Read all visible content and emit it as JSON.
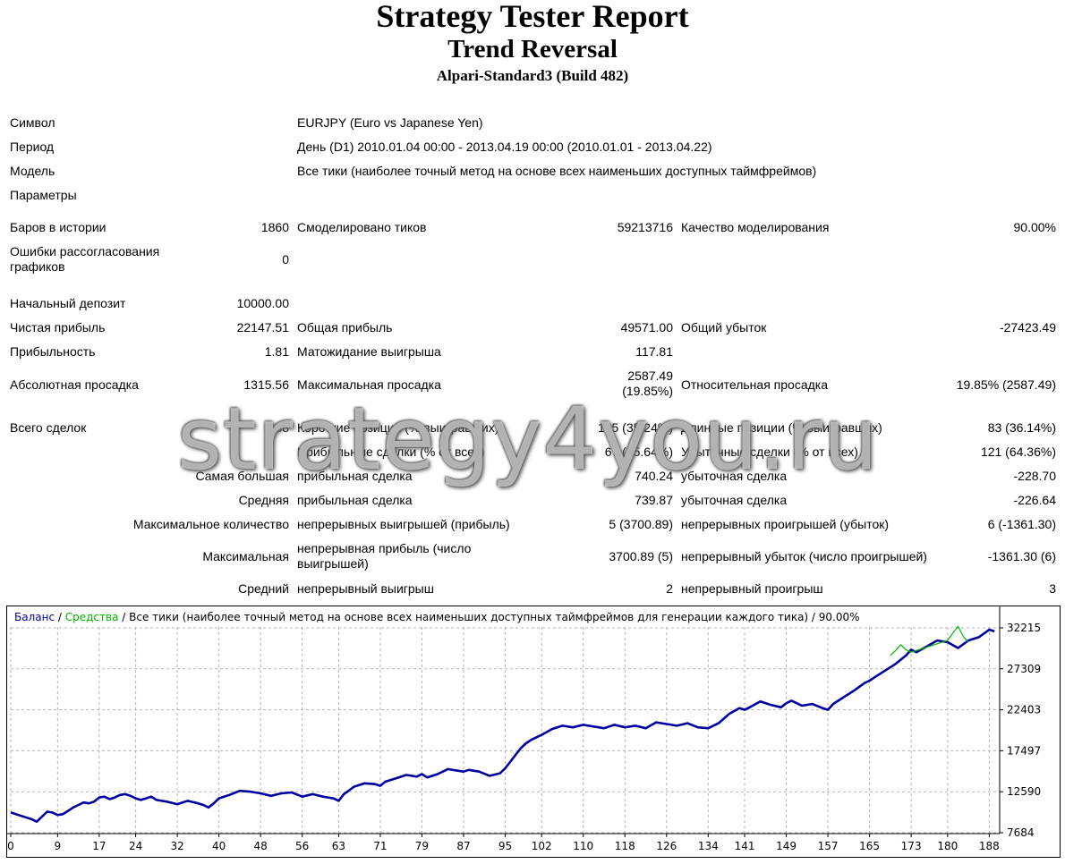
{
  "header": {
    "title": "Strategy Tester Report",
    "subtitle": "Trend Reversal",
    "server": "Alpari-Standard3 (Build 482)"
  },
  "info": {
    "symbol_label": "Символ",
    "symbol_value": "EURJPY (Euro vs Japanese Yen)",
    "period_label": "Период",
    "period_value": "День (D1) 2010.01.04 00:00 - 2013.04.19 00:00 (2010.01.01 - 2013.04.22)",
    "model_label": "Модель",
    "model_value": "Все тики (наиболее точный метод на основе всех наименьших доступных таймфреймов)",
    "params_label": "Параметры"
  },
  "stats": {
    "bars_label": "Баров в истории",
    "bars_value": "1860",
    "ticks_label": "Смоделировано тиков",
    "ticks_value": "59213716",
    "quality_label": "Качество моделирования",
    "quality_value": "90.00%",
    "errors_label": "Ошибки рассогласования графиков",
    "errors_value": "0",
    "deposit_label": "Начальный депозит",
    "deposit_value": "10000.00",
    "net_label": "Чистая прибыль",
    "net_value": "22147.51",
    "gross_profit_label": "Общая прибыль",
    "gross_profit_value": "49571.00",
    "gross_loss_label": "Общий убыток",
    "gross_loss_value": "-27423.49",
    "pf_label": "Прибыльность",
    "pf_value": "1.81",
    "payoff_label": "Матожидание выигрыша",
    "payoff_value": "117.81",
    "abs_dd_label": "Абсолютная просадка",
    "abs_dd_value": "1315.56",
    "max_dd_label": "Максимальная просадка",
    "max_dd_value_1": "2587.49",
    "max_dd_value_2": "(19.85%)",
    "rel_dd_label": "Относительная просадка",
    "rel_dd_value": "19.85% (2587.49)",
    "trades_label": "Всего сделок",
    "trades_value": "188",
    "short_label": "Короткие позиции (% выигравших)",
    "short_value": "105 (35.24%)",
    "long_label": "Длинные позиции (% выигравших)",
    "long_value": "83 (36.14%)",
    "profit_trades_label": "Прибыльные сделки (% от всех)",
    "profit_trades_value": "67 (35.64%)",
    "loss_trades_label": "Убыточные сделки (% от всех)",
    "loss_trades_value": "121 (64.36%)",
    "largest_label": "Самая большая",
    "largest_profit_label": "прибыльная сделка",
    "largest_profit_value": "740.24",
    "largest_loss_label": "убыточная сделка",
    "largest_loss_value": "-228.70",
    "average_label": "Средняя",
    "average_profit_label": "прибыльная сделка",
    "average_profit_value": "739.87",
    "average_loss_label": "убыточная сделка",
    "average_loss_value": "-226.64",
    "max_count_label": "Максимальное количество",
    "max_cons_wins_label": "непрерывных выигрышей (прибыль)",
    "max_cons_wins_value": "5 (3700.89)",
    "max_cons_losses_label": "непрерывных проигрышей (убыток)",
    "max_cons_losses_value": "6 (-1361.30)",
    "maximal_label": "Максимальная",
    "maximal_profit_label": "непрерывная прибыль (число выигрышей)",
    "maximal_profit_value": "3700.89 (5)",
    "maximal_loss_label": "непрерывный убыток (число проигрышей)",
    "maximal_loss_value": "-1361.30 (6)",
    "avg_cons_label": "Средний",
    "avg_cons_wins_label": "непрерывный выигрыш",
    "avg_cons_wins_value": "2",
    "avg_cons_losses_label": "непрерывный проигрыш",
    "avg_cons_losses_value": "3"
  },
  "watermark": "strategy4you.ru",
  "chart_data": {
    "type": "line",
    "legend": {
      "balance": "Баланс",
      "sep1": " / ",
      "equity": "Средства",
      "rest": " / Все тики (наиболее точный метод на основе всех наименьших доступных таймфреймов для генерации каждого тика) / 90.00%"
    },
    "colors": {
      "balance": "#0000a0",
      "equity": "#00b400",
      "grid": "#b4b4b4"
    },
    "x_ticks": [
      "0",
      "9",
      "17",
      "24",
      "32",
      "40",
      "48",
      "56",
      "63",
      "71",
      "79",
      "87",
      "95",
      "102",
      "110",
      "118",
      "126",
      "134",
      "141",
      "149",
      "157",
      "165",
      "173",
      "180",
      "188"
    ],
    "y_ticks": [
      "32215",
      "27309",
      "22403",
      "17497",
      "12590",
      "7684"
    ],
    "ylim": [
      7684,
      32215
    ],
    "xlim": [
      0,
      190
    ],
    "series": [
      {
        "name": "Баланс",
        "x": [
          0,
          2,
          4,
          5,
          6,
          7,
          8,
          9,
          10,
          11,
          12,
          13,
          14,
          15,
          16,
          17,
          18,
          19,
          20,
          21,
          22,
          23,
          24,
          25,
          26,
          27,
          28,
          30,
          32,
          34,
          36,
          37,
          38,
          39,
          40,
          42,
          44,
          46,
          48,
          50,
          52,
          54,
          56,
          58,
          60,
          62,
          63,
          64,
          66,
          68,
          70,
          71,
          72,
          74,
          76,
          78,
          79,
          80,
          82,
          84,
          86,
          87,
          88,
          90,
          92,
          94,
          95,
          96,
          97,
          98,
          99,
          100,
          102,
          104,
          106,
          108,
          110,
          112,
          114,
          116,
          118,
          120,
          122,
          124,
          126,
          128,
          130,
          132,
          134,
          136,
          138,
          140,
          141,
          142,
          144,
          146,
          148,
          149,
          150,
          152,
          154,
          156,
          157,
          158,
          160,
          162,
          164,
          165,
          166,
          168,
          170,
          172,
          173,
          174,
          176,
          178,
          180,
          182,
          184,
          186,
          188,
          189
        ],
        "values": [
          10100,
          9700,
          9300,
          9000,
          9600,
          10200,
          10100,
          9800,
          9900,
          10300,
          10700,
          11000,
          11300,
          11200,
          11400,
          11900,
          12000,
          11700,
          11900,
          12200,
          12300,
          12100,
          11800,
          11600,
          11800,
          12000,
          11600,
          11400,
          11100,
          11500,
          11200,
          11000,
          10700,
          11200,
          11800,
          12200,
          12700,
          12600,
          12400,
          12100,
          12400,
          12500,
          12000,
          12300,
          12000,
          11800,
          11500,
          12300,
          13200,
          13600,
          13500,
          13300,
          13800,
          14200,
          14600,
          14400,
          14700,
          14300,
          14700,
          15300,
          15100,
          15000,
          15200,
          15000,
          14500,
          14800,
          15400,
          16200,
          17000,
          17800,
          18400,
          18800,
          19400,
          20100,
          20500,
          20300,
          20600,
          20400,
          20200,
          20600,
          20300,
          20500,
          20200,
          20900,
          20700,
          20500,
          20800,
          20300,
          20200,
          20800,
          21900,
          22600,
          22400,
          22700,
          23400,
          23000,
          22700,
          23200,
          23500,
          22900,
          23100,
          22600,
          22400,
          23100,
          23900,
          24700,
          25600,
          25900,
          26300,
          27100,
          27900,
          28900,
          29600,
          29300,
          30000,
          30700,
          30500,
          29800,
          30700,
          31100,
          32000,
          31800
        ]
      },
      {
        "name": "Средства",
        "x": [
          169,
          170,
          171,
          172,
          173,
          180,
          181,
          182,
          183,
          184
        ],
        "values": [
          28900,
          29500,
          30200,
          29600,
          29300,
          30700,
          31600,
          32400,
          31200,
          30500
        ]
      }
    ]
  }
}
